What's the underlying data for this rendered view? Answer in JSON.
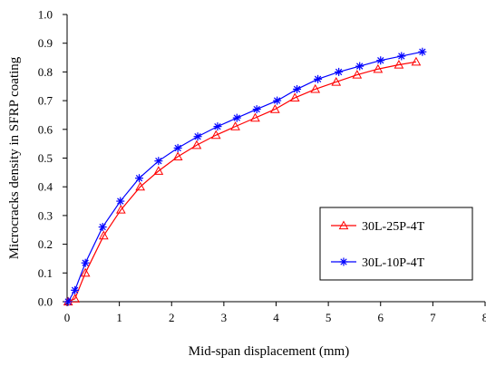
{
  "chart_data": {
    "type": "line",
    "title": "",
    "xlabel": "Mid-span displacement (mm)",
    "ylabel": "Microcracks density in SFRP coating",
    "xlim": [
      0,
      8
    ],
    "ylim": [
      0,
      1.0
    ],
    "xticks": [
      "0",
      "1",
      "2",
      "3",
      "4",
      "5",
      "6",
      "7",
      "8"
    ],
    "yticks": [
      "0.0",
      "0.1",
      "0.2",
      "0.3",
      "0.4",
      "0.5",
      "0.6",
      "0.7",
      "0.8",
      "0.9",
      "1.0"
    ],
    "grid": false,
    "legend": "center-right",
    "series": [
      {
        "name": "30L-25P-4T",
        "color": "#ff0000",
        "marker": "triangle",
        "x": [
          0.02,
          0.15,
          0.35,
          0.7,
          1.03,
          1.4,
          1.75,
          2.12,
          2.48,
          2.85,
          3.22,
          3.6,
          3.98,
          4.36,
          4.75,
          5.15,
          5.55,
          5.95,
          6.35,
          6.68
        ],
        "y": [
          0.0,
          0.01,
          0.1,
          0.23,
          0.32,
          0.4,
          0.455,
          0.505,
          0.545,
          0.58,
          0.61,
          0.64,
          0.67,
          0.71,
          0.74,
          0.765,
          0.79,
          0.81,
          0.825,
          0.835
        ]
      },
      {
        "name": "30L-10P-4T",
        "color": "#0000ff",
        "marker": "asterisk",
        "x": [
          0.02,
          0.15,
          0.35,
          0.68,
          1.02,
          1.38,
          1.75,
          2.12,
          2.5,
          2.88,
          3.25,
          3.63,
          4.02,
          4.4,
          4.8,
          5.2,
          5.6,
          6.0,
          6.4,
          6.8
        ],
        "y": [
          0.0,
          0.04,
          0.135,
          0.26,
          0.35,
          0.43,
          0.49,
          0.535,
          0.575,
          0.61,
          0.64,
          0.67,
          0.7,
          0.74,
          0.775,
          0.8,
          0.82,
          0.84,
          0.855,
          0.87
        ]
      }
    ]
  }
}
